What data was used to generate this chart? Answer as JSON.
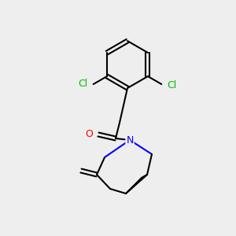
{
  "background_color": "#eeeeee",
  "bond_color": "#000000",
  "atom_colors": {
    "N": "#0000ff",
    "O": "#ff0000",
    "Cl": "#00bb00"
  },
  "figsize": [
    3.0,
    3.0
  ],
  "dpi": 100
}
